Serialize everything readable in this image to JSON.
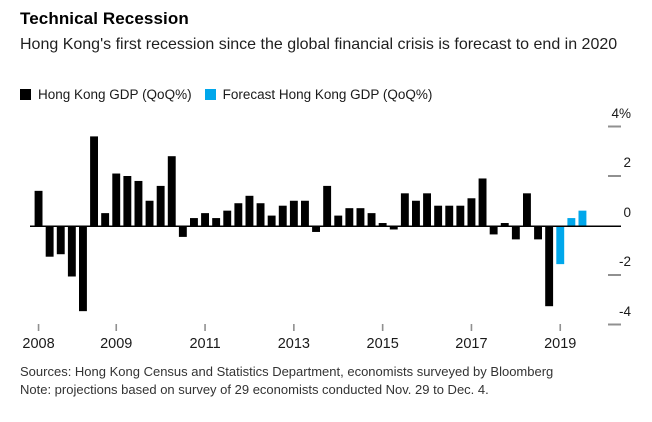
{
  "header": {
    "title": "Technical Recession",
    "subtitle": "Hong Kong's first recession since the global financial crisis is forecast to end in 2020"
  },
  "footer": {
    "sources": "Sources: Hong Kong Census and Statistics Department, economists surveyed by Bloomberg",
    "note": "Note: projections based on survey of 29 economists conducted Nov. 29 to Dec. 4."
  },
  "chart_data": {
    "type": "bar",
    "title": "Technical Recession",
    "subtitle": "Hong Kong's first recession since the global financial crisis is forecast to end in 2020",
    "legend": [
      "Hong Kong GDP (QoQ%)",
      "Forecast Hong Kong GDP (QoQ%)"
    ],
    "legend_position": "top-left",
    "grid": false,
    "background": "#ffffff",
    "y_axis": {
      "side": "right",
      "ticks": [
        4,
        2,
        0,
        -2,
        -4
      ],
      "labels": [
        "4%",
        "2",
        "0",
        "-2",
        "-4"
      ],
      "range": [
        -4.5,
        4.7
      ],
      "tick_color": "#909090"
    },
    "x_axis": {
      "tick_labels": [
        "2008",
        "2009",
        "2011",
        "2013",
        "2015",
        "2017",
        "2019"
      ],
      "tick_bar_indices": [
        0,
        7,
        15,
        23,
        31,
        39,
        47
      ],
      "tick_color": "#909090"
    },
    "series": [
      {
        "name": "Hong Kong GDP (QoQ%)",
        "color": "#000000",
        "frequency": "quarterly",
        "start_period": "2008 Q1",
        "end_period": "2019 Q3",
        "values": [
          1.4,
          -1.2,
          -1.1,
          -2.0,
          -3.4,
          3.6,
          0.5,
          2.1,
          2.0,
          1.8,
          1.0,
          1.6,
          2.8,
          -0.4,
          0.3,
          0.5,
          0.3,
          0.6,
          0.9,
          1.2,
          0.9,
          0.4,
          0.8,
          1.0,
          1.0,
          -0.2,
          1.6,
          0.4,
          0.7,
          0.7,
          0.5,
          0.1,
          -0.1,
          1.3,
          1.0,
          1.3,
          0.8,
          0.8,
          0.8,
          1.1,
          1.9,
          -0.3,
          0.1,
          -0.5,
          1.3,
          -0.5,
          -3.2
        ]
      },
      {
        "name": "Forecast Hong Kong GDP (QoQ%)",
        "color": "#00a7eb",
        "frequency": "quarterly",
        "start_period": "2019 Q4",
        "end_period": "2020 Q2",
        "values": [
          -1.5,
          0.3,
          0.6
        ]
      }
    ]
  }
}
